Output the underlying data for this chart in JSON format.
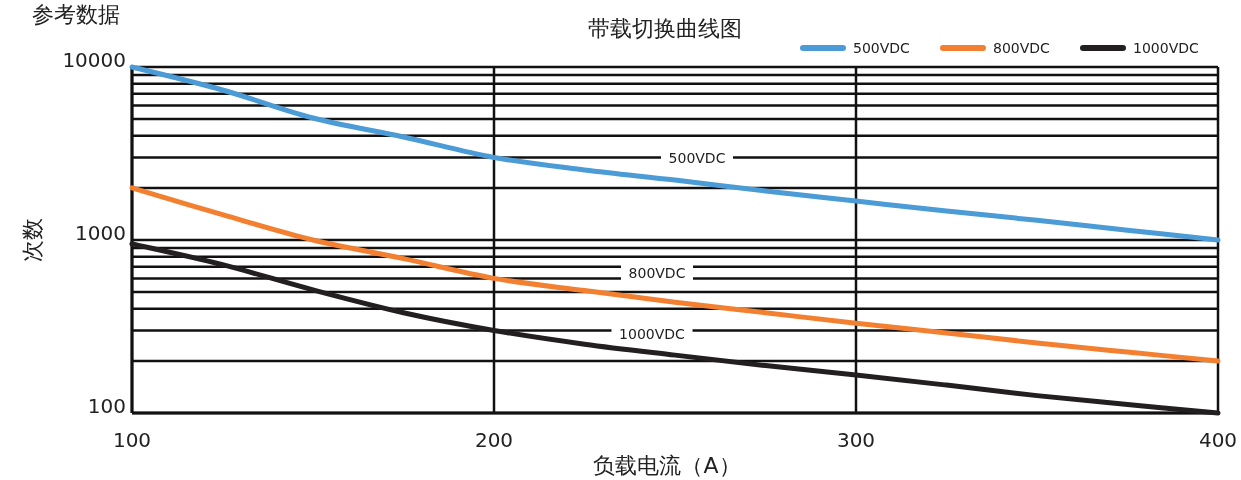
{
  "chart_data": {
    "type": "line",
    "title": "带载切换曲线图",
    "xlabel": "负载电流（A）",
    "ylabel": "次数",
    "annotations": [
      "参考数据",
      "500VDC",
      "800VDC",
      "1000VDC"
    ],
    "x": [
      100,
      125,
      150,
      175,
      200,
      225,
      250,
      275,
      300,
      325,
      350,
      375,
      400
    ],
    "series": [
      {
        "name": "500VDC",
        "color": "#4a9bd6",
        "values": [
          10000,
          7360,
          5070,
          3940,
          3000,
          2540,
          2220,
          1920,
          1680,
          1470,
          1300,
          1140,
          1000
        ]
      },
      {
        "name": "800VDC",
        "color": "#f28030",
        "values": [
          2000,
          1400,
          1000,
          780,
          600,
          510,
          437,
          380,
          330,
          290,
          254,
          225,
          200
        ]
      },
      {
        "name": "1000VDC",
        "color": "#231f20",
        "values": [
          950,
          720,
          515,
          380,
          300,
          250,
          216,
          188,
          166,
          145,
          126,
          112,
          100
        ]
      }
    ],
    "log": "y",
    "xlim": [
      100,
      400
    ],
    "ylim": [
      100,
      10000
    ],
    "xticks": [
      100,
      200,
      300,
      400
    ],
    "yticks": [
      100,
      {
        "value": 200,
        "label": null
      },
      {
        "value": 300,
        "label": null
      },
      {
        "value": 400,
        "label": null
      },
      {
        "value": 500,
        "label": null
      },
      {
        "value": 600,
        "label": null
      },
      {
        "value": 700,
        "label": null
      },
      {
        "value": 800,
        "label": null
      },
      {
        "value": 900,
        "label": null
      },
      1000,
      {
        "value": 2000,
        "label": null
      },
      {
        "value": 3000,
        "label": null
      },
      {
        "value": 4000,
        "label": null
      },
      {
        "value": 5000,
        "label": null
      },
      {
        "value": 6000,
        "label": null
      },
      {
        "value": 7000,
        "label": null
      },
      {
        "value": 8000,
        "label": null
      },
      {
        "value": 9000,
        "label": null
      },
      10000
    ],
    "grid": true,
    "legend": "top right",
    "marker": "none",
    "line_style": "solid"
  }
}
